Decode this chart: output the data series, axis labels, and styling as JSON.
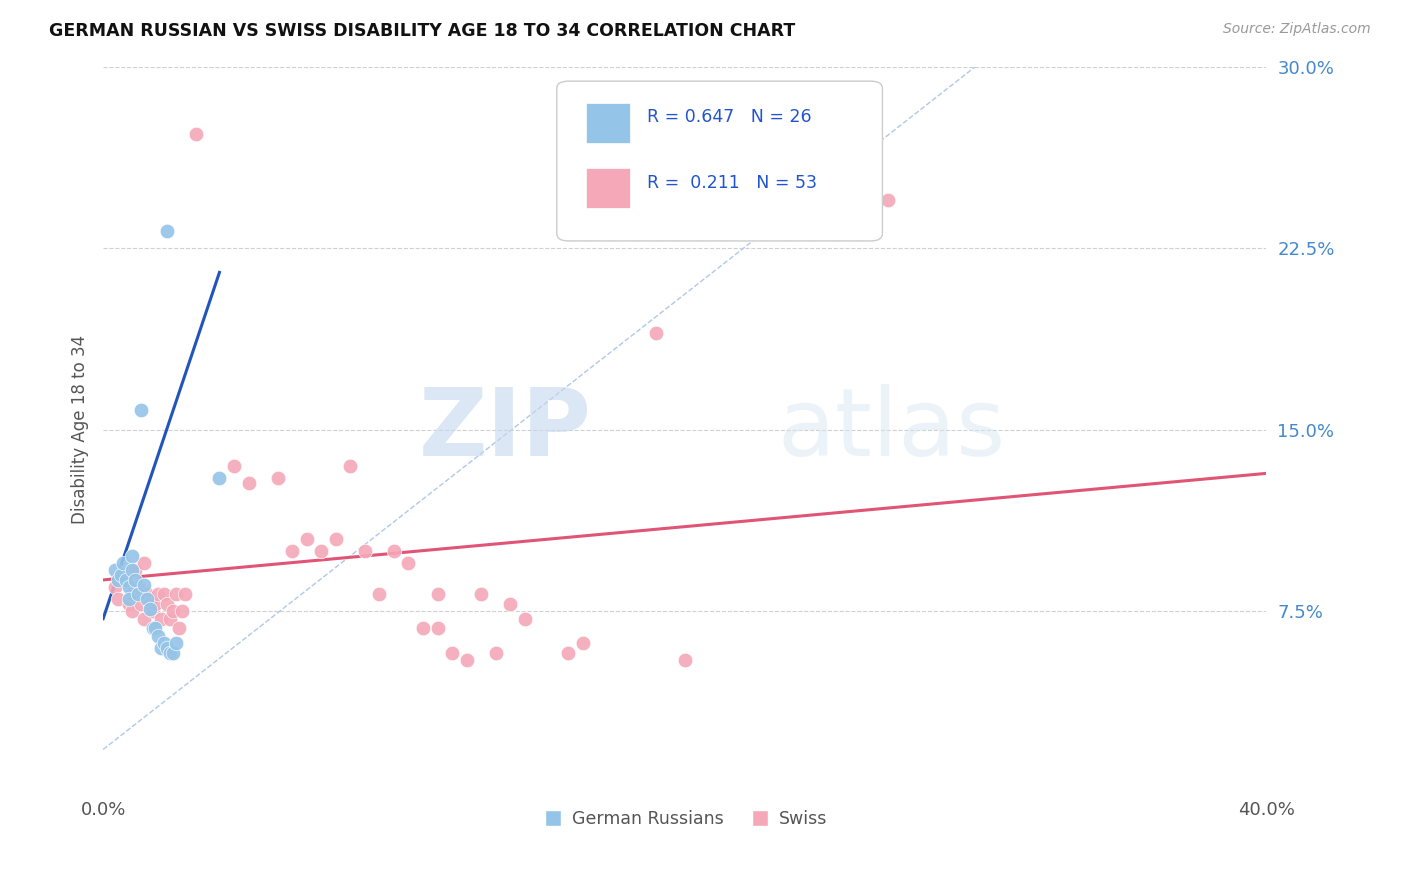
{
  "title": "GERMAN RUSSIAN VS SWISS DISABILITY AGE 18 TO 34 CORRELATION CHART",
  "source": "Source: ZipAtlas.com",
  "ylabel": "Disability Age 18 to 34",
  "xlim": [
    0.0,
    0.4
  ],
  "ylim": [
    0.0,
    0.3
  ],
  "xtick_positions": [
    0.0,
    0.4
  ],
  "xtick_labels": [
    "0.0%",
    "40.0%"
  ],
  "yticks": [
    0.075,
    0.15,
    0.225,
    0.3
  ],
  "ytick_labels": [
    "7.5%",
    "15.0%",
    "22.5%",
    "30.0%"
  ],
  "legend_labels": [
    "German Russians",
    "Swiss"
  ],
  "blue_R": "0.647",
  "blue_N": "26",
  "pink_R": "0.211",
  "pink_N": "53",
  "blue_color": "#94c4e8",
  "pink_color": "#f4a8b8",
  "blue_line_color": "#2255bb",
  "pink_line_color": "#e05575",
  "dashed_line_color": "#b0c8e8",
  "watermark_zip": "ZIP",
  "watermark_atlas": "atlas",
  "background_color": "#ffffff",
  "grid_color": "#d0d0d0",
  "blue_points": [
    [
      0.004,
      0.092
    ],
    [
      0.005,
      0.088
    ],
    [
      0.006,
      0.09
    ],
    [
      0.007,
      0.095
    ],
    [
      0.008,
      0.088
    ],
    [
      0.009,
      0.085
    ],
    [
      0.009,
      0.08
    ],
    [
      0.01,
      0.098
    ],
    [
      0.01,
      0.092
    ],
    [
      0.011,
      0.088
    ],
    [
      0.012,
      0.082
    ],
    [
      0.013,
      0.158
    ],
    [
      0.014,
      0.086
    ],
    [
      0.015,
      0.08
    ],
    [
      0.016,
      0.076
    ],
    [
      0.017,
      0.068
    ],
    [
      0.018,
      0.068
    ],
    [
      0.019,
      0.065
    ],
    [
      0.02,
      0.06
    ],
    [
      0.021,
      0.062
    ],
    [
      0.022,
      0.06
    ],
    [
      0.023,
      0.058
    ],
    [
      0.024,
      0.058
    ],
    [
      0.025,
      0.062
    ],
    [
      0.022,
      0.232
    ],
    [
      0.04,
      0.13
    ]
  ],
  "pink_points": [
    [
      0.004,
      0.085
    ],
    [
      0.005,
      0.08
    ],
    [
      0.007,
      0.09
    ],
    [
      0.008,
      0.088
    ],
    [
      0.009,
      0.078
    ],
    [
      0.01,
      0.082
    ],
    [
      0.01,
      0.075
    ],
    [
      0.011,
      0.092
    ],
    [
      0.012,
      0.085
    ],
    [
      0.013,
      0.078
    ],
    [
      0.014,
      0.072
    ],
    [
      0.014,
      0.095
    ],
    [
      0.015,
      0.082
    ],
    [
      0.016,
      0.078
    ],
    [
      0.017,
      0.075
    ],
    [
      0.018,
      0.078
    ],
    [
      0.019,
      0.082
    ],
    [
      0.02,
      0.072
    ],
    [
      0.021,
      0.082
    ],
    [
      0.022,
      0.078
    ],
    [
      0.023,
      0.072
    ],
    [
      0.024,
      0.075
    ],
    [
      0.025,
      0.082
    ],
    [
      0.026,
      0.068
    ],
    [
      0.027,
      0.075
    ],
    [
      0.028,
      0.082
    ],
    [
      0.032,
      0.272
    ],
    [
      0.045,
      0.135
    ],
    [
      0.05,
      0.128
    ],
    [
      0.06,
      0.13
    ],
    [
      0.065,
      0.1
    ],
    [
      0.07,
      0.105
    ],
    [
      0.075,
      0.1
    ],
    [
      0.08,
      0.105
    ],
    [
      0.085,
      0.135
    ],
    [
      0.09,
      0.1
    ],
    [
      0.095,
      0.082
    ],
    [
      0.1,
      0.1
    ],
    [
      0.105,
      0.095
    ],
    [
      0.11,
      0.068
    ],
    [
      0.115,
      0.068
    ],
    [
      0.115,
      0.082
    ],
    [
      0.12,
      0.058
    ],
    [
      0.125,
      0.055
    ],
    [
      0.13,
      0.082
    ],
    [
      0.135,
      0.058
    ],
    [
      0.14,
      0.078
    ],
    [
      0.145,
      0.072
    ],
    [
      0.16,
      0.058
    ],
    [
      0.165,
      0.062
    ],
    [
      0.19,
      0.19
    ],
    [
      0.2,
      0.055
    ],
    [
      0.27,
      0.245
    ]
  ],
  "blue_trendline": [
    [
      0.0,
      0.072
    ],
    [
      0.04,
      0.215
    ]
  ],
  "pink_trendline": [
    [
      0.0,
      0.088
    ],
    [
      0.4,
      0.132
    ]
  ],
  "dashed_line": [
    [
      0.0,
      0.018
    ],
    [
      0.3,
      0.3
    ]
  ]
}
